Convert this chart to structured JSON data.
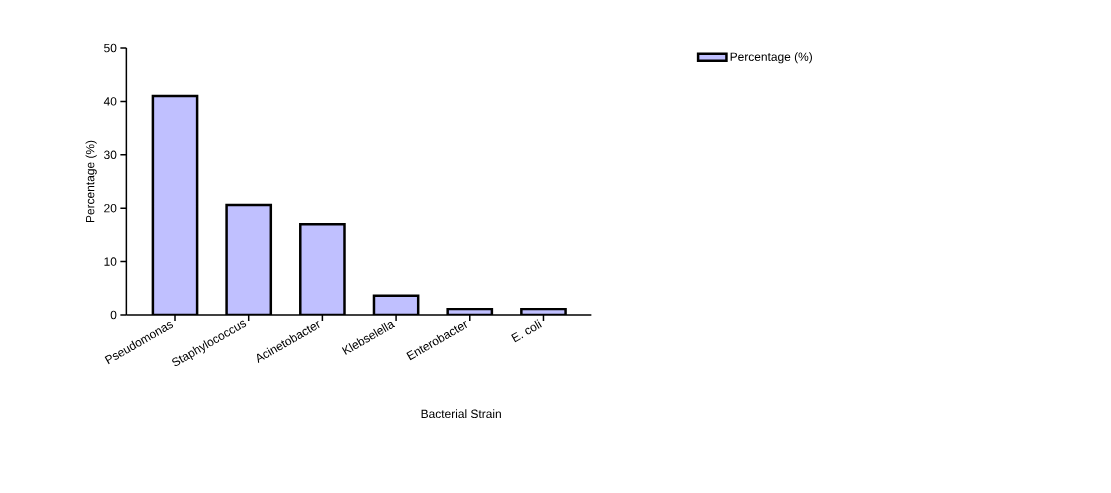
{
  "chart_data": {
    "type": "bar",
    "categories": [
      "Pseudomonas",
      "Staphylococcus",
      "Acinetobacter",
      "Klebselella",
      "Enterobacter",
      "E. coli"
    ],
    "series": [
      {
        "name": "Percentage (%)",
        "color": "#c0c0ff",
        "values": [
          41,
          20.6,
          17,
          3.6,
          1.1,
          1.1
        ]
      }
    ],
    "xlabel": "Bacterial Strain",
    "ylabel": "Percentage (%)",
    "ylim": [
      0,
      50
    ],
    "yticks": [
      0,
      10,
      20,
      30,
      40,
      50
    ],
    "legend": "top right",
    "grid": false
  }
}
